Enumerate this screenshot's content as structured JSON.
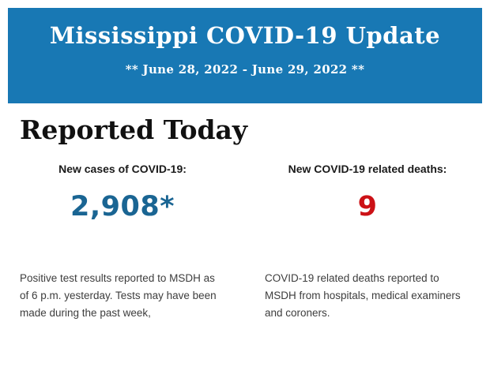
{
  "banner": {
    "title": "Mississippi COVID-19 Update",
    "date_range": "** June 28, 2022 - June 29, 2022 **",
    "background_color": "#1878b4",
    "text_color": "#ffffff"
  },
  "section": {
    "heading": "Reported Today"
  },
  "stats": {
    "cases": {
      "label": "New cases of COVID-19:",
      "value": "2,908*",
      "color": "#1a6593",
      "description": "Positive test results reported to MSDH as of 6 p.m. yesterday. Tests may have been made during the past week,"
    },
    "deaths": {
      "label": "New COVID-19 related deaths:",
      "value": "9",
      "color": "#cc1116",
      "description": "COVID-19 related deaths reported to MSDH from hospitals, medical examiners and coroners."
    }
  }
}
